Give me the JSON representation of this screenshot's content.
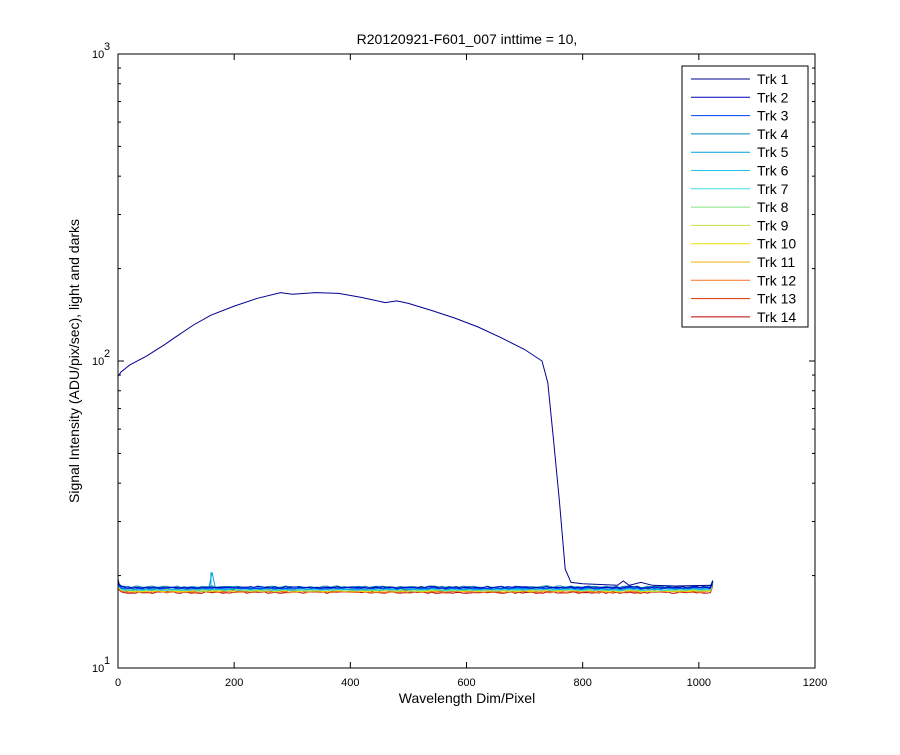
{
  "chart_data": {
    "type": "line",
    "title": "R20120921-F601_007 inttime = 10,",
    "xlabel": "Wavelength Dim/Pixel",
    "ylabel": "Signal Intensity (ADU/pix/sec), light and darks",
    "xlim": [
      0,
      1200
    ],
    "ylim": [
      10,
      1000
    ],
    "yscale": "log",
    "grid": false,
    "legend_position": "top-right",
    "x_ticks": [
      {
        "value": 0,
        "label": "0"
      },
      {
        "value": 200,
        "label": "200"
      },
      {
        "value": 400,
        "label": "400"
      },
      {
        "value": 600,
        "label": "600"
      },
      {
        "value": 800,
        "label": "800"
      },
      {
        "value": 1000,
        "label": "1000"
      },
      {
        "value": 1200,
        "label": "1200"
      }
    ],
    "y_ticks": [
      {
        "value": 10,
        "base": "10",
        "exp": "1"
      },
      {
        "value": 100,
        "base": "10",
        "exp": "2"
      },
      {
        "value": 1000,
        "base": "10",
        "exp": "3"
      }
    ],
    "series": [
      {
        "name": "Trk 1",
        "color": "#00008F",
        "points": [
          [
            0,
            89
          ],
          [
            5,
            92
          ],
          [
            20,
            97
          ],
          [
            50,
            104
          ],
          [
            80,
            113
          ],
          [
            100,
            120
          ],
          [
            130,
            131
          ],
          [
            160,
            141
          ],
          [
            200,
            151
          ],
          [
            240,
            160
          ],
          [
            280,
            167
          ],
          [
            300,
            165
          ],
          [
            340,
            167
          ],
          [
            380,
            166
          ],
          [
            420,
            161
          ],
          [
            460,
            155
          ],
          [
            480,
            157
          ],
          [
            500,
            154
          ],
          [
            540,
            146
          ],
          [
            580,
            138
          ],
          [
            620,
            129
          ],
          [
            660,
            119
          ],
          [
            700,
            109
          ],
          [
            730,
            100
          ],
          [
            740,
            85
          ],
          [
            750,
            55
          ],
          [
            760,
            35
          ],
          [
            770,
            21
          ],
          [
            780,
            19
          ],
          [
            800,
            18.8
          ],
          [
            860,
            18.6
          ],
          [
            870,
            19.2
          ],
          [
            880,
            18.6
          ],
          [
            900,
            19
          ],
          [
            920,
            18.6
          ],
          [
            960,
            18.5
          ],
          [
            1024,
            18.6
          ]
        ]
      },
      {
        "name": "Trk 2",
        "color": "#0000BF",
        "level": 18.3
      },
      {
        "name": "Trk 3",
        "color": "#0040FF",
        "level": 18.2
      },
      {
        "name": "Trk 4",
        "color": "#0080B0",
        "level": 18.4
      },
      {
        "name": "Trk 5",
        "color": "#00A0E0",
        "level": 18.1,
        "spike": [
          160,
          20.5
        ]
      },
      {
        "name": "Trk 6",
        "color": "#20C8E8",
        "level": 18.0
      },
      {
        "name": "Trk 7",
        "color": "#40E0E0",
        "level": 18.2
      },
      {
        "name": "Trk 8",
        "color": "#80E080",
        "level": 17.9
      },
      {
        "name": "Trk 9",
        "color": "#C0E040",
        "level": 18.0
      },
      {
        "name": "Trk 10",
        "color": "#E8E000",
        "level": 17.8
      },
      {
        "name": "Trk 11",
        "color": "#F0B000",
        "level": 17.9
      },
      {
        "name": "Trk 12",
        "color": "#F07020",
        "level": 17.7
      },
      {
        "name": "Trk 13",
        "color": "#E03000",
        "level": 17.8
      },
      {
        "name": "Trk 14",
        "color": "#C00000",
        "level": 17.6
      }
    ]
  }
}
